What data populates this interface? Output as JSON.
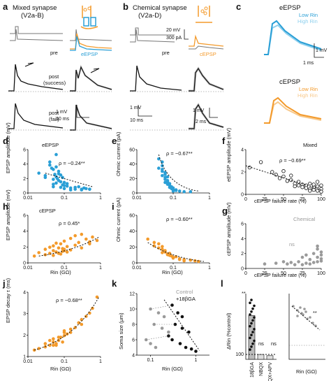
{
  "panels": {
    "a": {
      "letter": "a",
      "title": "Mixed synapse",
      "subtitle": "(V2a-B)",
      "pre_label": "pre",
      "ep_label": "eEPSP",
      "post_success": "post",
      "post_success_sub": "(success)",
      "post_fail": "post",
      "post_fail_sub": "(fail)",
      "scale_v": "1 mV",
      "scale_t": "10 ms"
    },
    "b": {
      "letter": "b",
      "title": "Chemical synapse",
      "subtitle": "(V2a-D)",
      "pre_label": "pre",
      "cp_label": "cEPSP",
      "scale_v1": "20 mV",
      "scale_v2": "300 pA",
      "scale_t": "2 ms"
    },
    "c": {
      "letter": "c",
      "title_e": "eEPSP",
      "low_e": "Low Rin",
      "high_e": "High Rin",
      "scale_v": "1 mV",
      "scale_t": "1 ms",
      "title_c": "cEPSP",
      "low_c": "Low Rin",
      "high_c": "High Rin"
    },
    "d": {
      "letter": "d",
      "inset": "eEPSP",
      "ylabel": "EPSP\namplitude (mV)",
      "rho": "ρ = −0.24**"
    },
    "e": {
      "letter": "e",
      "ylabel": "Ohmic\ncurrent (pA)",
      "rho": "ρ = −0.67**"
    },
    "f": {
      "letter": "f",
      "inset": "Mixed",
      "ylabel": "eEPSP\namplitude (mV)",
      "xlabel": "cEPSP failure rate (%)",
      "rho": "ρ = −0.69**"
    },
    "g": {
      "letter": "g",
      "inset": "Chemical",
      "ylabel": "cEPSP\namplitude (mV)",
      "xlabel": "cEPSP failure rate (%)",
      "ns": "ns"
    },
    "h": {
      "letter": "h",
      "inset": "cEPSP",
      "ylabel": "EPSP\namplitude (mV)",
      "xlabel": "Rin (GΩ)",
      "rho": "ρ = 0.45*"
    },
    "i": {
      "letter": "i",
      "ylabel": "Ohmic\ncurrent (pA)",
      "xlabel": "Rin (GΩ)",
      "rho": "ρ = −0.60**"
    },
    "j": {
      "letter": "j",
      "ylabel": "EPSP\ndecay τ (ms)",
      "xlabel": "Rin (GΩ)",
      "rho": "ρ = −0.68**"
    },
    "k": {
      "letter": "k",
      "legend_control": "Control",
      "legend_drug": "+18βGA",
      "ylabel": "Soma size (μm)",
      "xlabel": "Rin (GΩ)"
    },
    "l": {
      "letter": "l",
      "ylabel": "ΔRin (%control)",
      "bars": [
        "18βGA",
        "NBQX",
        "NBQX+APV"
      ],
      "sig1": "**",
      "ns1": "ns",
      "ns2": "ns",
      "sig2": "**",
      "xlabel": "Rin (GΩ)"
    }
  },
  "ticks": {
    "d_y": [
      "6",
      "4",
      "2",
      "0"
    ],
    "e_y": [
      "60",
      "40",
      "20",
      "0"
    ],
    "f_y": [
      "4",
      "2",
      "0"
    ],
    "f_x": [
      "0",
      "25",
      "50",
      "75",
      "100"
    ],
    "g_y": [
      "6",
      "4",
      "2",
      "0"
    ],
    "g_x": [
      "0",
      "25",
      "50",
      "75",
      "100"
    ],
    "h_y": [
      "6",
      "4",
      "2",
      "0"
    ],
    "i_y": [
      "60",
      "40",
      "20",
      "0"
    ],
    "j_y": [
      "4",
      "3",
      "2",
      "1"
    ],
    "k_y": [
      "12",
      "10",
      "8",
      "6",
      "4"
    ],
    "l_y": [
      "100"
    ],
    "log_x": [
      "0.01",
      "0.1",
      "1"
    ],
    "log_x2": [
      "0.1",
      "1"
    ]
  },
  "colors": {
    "blue": "#2a9fd6",
    "orange": "#f39a2b",
    "gray": "#9a9a9a",
    "black": "#111111"
  },
  "chart_data": [
    {
      "panel": "d",
      "type": "scatter",
      "x_scale": "log",
      "xlim": [
        0.01,
        1
      ],
      "ylim": [
        0,
        7
      ],
      "color": "#2a9fd6",
      "x": [
        0.02,
        0.03,
        0.04,
        0.05,
        0.06,
        0.07,
        0.08,
        0.09,
        0.1,
        0.12,
        0.15,
        0.2,
        0.3,
        0.05,
        0.06,
        0.08,
        0.1,
        0.04,
        0.05,
        0.07,
        0.09,
        0.12,
        0.2,
        0.06,
        0.08,
        0.05,
        0.03,
        0.15,
        0.25,
        0.4,
        0.5,
        0.07,
        0.06,
        0.1,
        0.045,
        0.055,
        0.065,
        0.3,
        0.35,
        0.5
      ],
      "y": [
        3.2,
        2.8,
        4.5,
        2.2,
        6.2,
        3.5,
        1.8,
        2.5,
        1.2,
        1.5,
        0.8,
        0.9,
        0.6,
        3.8,
        1.6,
        2.9,
        0.7,
        5.0,
        1.0,
        2.0,
        1.3,
        1.1,
        0.6,
        4.2,
        0.9,
        1.4,
        2.5,
        0.5,
        1.0,
        0.7,
        0.6,
        3.1,
        2.6,
        1.7,
        4.0,
        3.0,
        2.3,
        0.5,
        0.8,
        0.6
      ]
    },
    {
      "panel": "e",
      "type": "scatter",
      "x_scale": "log",
      "xlim": [
        0.01,
        1
      ],
      "ylim": [
        0,
        70
      ],
      "color": "#2a9fd6",
      "x": [
        0.04,
        0.05,
        0.05,
        0.06,
        0.06,
        0.07,
        0.07,
        0.08,
        0.08,
        0.09,
        0.1,
        0.1,
        0.12,
        0.12,
        0.15,
        0.2,
        0.05,
        0.06,
        0.07,
        0.08,
        0.06,
        0.07,
        0.09,
        0.1,
        0.05,
        0.06,
        0.3,
        0.04,
        0.05,
        0.1
      ],
      "y": [
        40,
        35,
        28,
        30,
        25,
        20,
        18,
        15,
        12,
        10,
        8,
        6,
        5,
        4,
        3,
        2,
        50,
        22,
        14,
        9,
        33,
        26,
        7,
        5,
        44,
        17,
        2,
        55,
        38,
        3
      ]
    },
    {
      "panel": "f",
      "type": "scatter",
      "xlim": [
        0,
        100
      ],
      "ylim": [
        0,
        5
      ],
      "color": "#111111",
      "x": [
        5,
        20,
        35,
        40,
        45,
        50,
        55,
        60,
        60,
        65,
        70,
        70,
        75,
        75,
        80,
        80,
        85,
        85,
        90,
        90,
        95,
        95,
        95,
        100,
        100,
        100,
        50,
        65,
        85,
        90
      ],
      "y": [
        3.0,
        3.6,
        2.5,
        2.2,
        1.8,
        2.0,
        1.5,
        1.6,
        2.1,
        1.2,
        1.4,
        1.0,
        1.1,
        0.8,
        1.0,
        0.7,
        0.6,
        1.2,
        0.8,
        0.5,
        0.9,
        0.4,
        1.4,
        0.6,
        1.0,
        0.3,
        2.6,
        0.9,
        0.4,
        1.1
      ]
    },
    {
      "panel": "g",
      "type": "scatter",
      "xlim": [
        0,
        100
      ],
      "ylim": [
        0,
        6
      ],
      "color": "#9a9a9a",
      "x": [
        25,
        40,
        50,
        55,
        60,
        65,
        70,
        75,
        80,
        80,
        85,
        90,
        90,
        95,
        95,
        95,
        100,
        100,
        100,
        85,
        75,
        95,
        100
      ],
      "y": [
        0.6,
        0.7,
        0.9,
        0.6,
        0.8,
        0.5,
        0.9,
        1.5,
        0.7,
        1.8,
        1.2,
        0.8,
        2.0,
        1.5,
        2.6,
        0.9,
        1.8,
        1.0,
        2.2,
        0.6,
        0.5,
        3.0,
        1.3
      ]
    },
    {
      "panel": "h",
      "type": "scatter",
      "x_scale": "log",
      "xlim": [
        0.01,
        1
      ],
      "ylim": [
        0,
        7
      ],
      "color": "#f39a2b",
      "x": [
        0.015,
        0.02,
        0.03,
        0.03,
        0.04,
        0.05,
        0.05,
        0.06,
        0.07,
        0.08,
        0.08,
        0.09,
        0.1,
        0.1,
        0.12,
        0.15,
        0.2,
        0.25,
        0.3,
        0.4,
        0.5,
        0.6,
        0.8,
        0.05,
        0.07,
        0.1,
        0.15,
        0.2,
        0.04,
        0.06,
        0.09,
        0.3,
        0.5,
        0.12
      ],
      "y": [
        1.0,
        1.5,
        1.2,
        2.0,
        1.4,
        1.8,
        2.5,
        1.6,
        2.2,
        1.3,
        2.8,
        1.7,
        2.0,
        3.2,
        2.4,
        1.9,
        2.6,
        3.0,
        2.2,
        3.5,
        2.8,
        3.8,
        3.3,
        1.1,
        1.4,
        1.8,
        3.6,
        4.0,
        2.3,
        2.9,
        2.1,
        4.2,
        3.1,
        1.6
      ]
    },
    {
      "panel": "i",
      "type": "scatter",
      "x_scale": "log",
      "xlim": [
        0.01,
        1
      ],
      "ylim": [
        0,
        70
      ],
      "color": "#f39a2b",
      "x": [
        0.02,
        0.03,
        0.03,
        0.04,
        0.05,
        0.05,
        0.06,
        0.07,
        0.08,
        0.09,
        0.1,
        0.12,
        0.15,
        0.2,
        0.3,
        0.4,
        0.5,
        0.04,
        0.06,
        0.08,
        0.1,
        0.15,
        0.2,
        0.05,
        0.07
      ],
      "y": [
        35,
        30,
        25,
        22,
        20,
        15,
        18,
        12,
        14,
        10,
        8,
        9,
        6,
        5,
        4,
        3,
        2,
        28,
        16,
        11,
        7,
        5,
        3,
        24,
        13
      ]
    },
    {
      "panel": "j",
      "type": "scatter",
      "x_scale": "log",
      "xlim": [
        0.01,
        1
      ],
      "ylim": [
        0.5,
        4.5
      ],
      "color": "#f39a2b",
      "x": [
        0.015,
        0.02,
        0.03,
        0.03,
        0.04,
        0.05,
        0.05,
        0.06,
        0.07,
        0.08,
        0.09,
        0.1,
        0.1,
        0.12,
        0.15,
        0.2,
        0.25,
        0.3,
        0.4,
        0.5,
        0.6,
        0.8,
        0.05,
        0.07,
        0.1,
        0.15,
        0.04,
        0.06,
        0.3
      ],
      "y": [
        0.9,
        1.0,
        1.1,
        1.3,
        1.2,
        1.4,
        1.6,
        1.3,
        1.5,
        1.7,
        1.4,
        1.8,
        2.0,
        1.9,
        2.2,
        2.3,
        2.6,
        2.8,
        3.0,
        3.2,
        3.5,
        4.2,
        1.2,
        1.7,
        2.1,
        2.0,
        1.5,
        1.2,
        2.5
      ]
    },
    {
      "panel": "k",
      "type": "scatter",
      "x_scale": "log",
      "xlim": [
        0.05,
        2
      ],
      "ylim": [
        4,
        12
      ],
      "series": [
        {
          "name": "Control",
          "color": "#9a9a9a",
          "x": [
            0.1,
            0.15,
            0.2,
            0.12,
            0.18,
            0.25,
            0.08,
            0.1,
            0.13
          ],
          "y": [
            10,
            9.5,
            9,
            8,
            7.5,
            7,
            6,
            5.5,
            5
          ]
        },
        {
          "name": "+18βGA",
          "color": "#111111",
          "x": [
            0.3,
            0.4,
            0.5,
            0.35,
            0.5,
            0.7,
            0.25,
            0.3,
            0.45,
            0.6,
            0.8,
            1.0
          ],
          "y": [
            10.5,
            9.5,
            9,
            8,
            7.5,
            7,
            6.5,
            6,
            5.5,
            5,
            4.8,
            4.5
          ]
        }
      ]
    },
    {
      "panel": "l",
      "type": "bar",
      "categories": [
        "18βGA",
        "NBQX",
        "NBQX+APV"
      ],
      "values": [
        260,
        100,
        95
      ],
      "ylim": [
        80,
        350
      ]
    }
  ]
}
